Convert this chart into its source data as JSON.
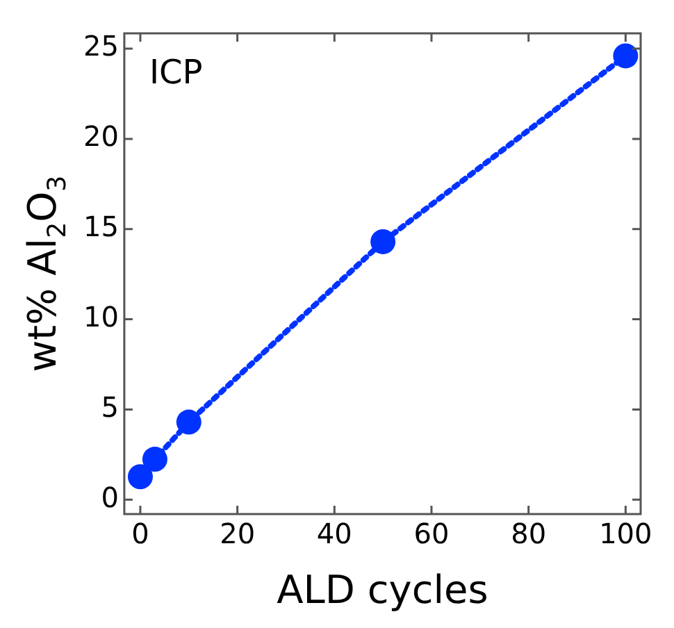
{
  "chart_data": {
    "type": "line",
    "xlabel": "ALD cycles",
    "ylabel": "wt% Al$_{2}$O$_{3}$",
    "annotations": [
      "ICP"
    ],
    "x": [
      0,
      3,
      10,
      50,
      100
    ],
    "series": [
      {
        "color": "#0033ff",
        "values": [
          1.27,
          2.24,
          4.3,
          14.3,
          24.6
        ]
      }
    ],
    "xlim": [
      -3.3,
      103.1
    ],
    "ylim": [
      -0.8,
      25.85
    ],
    "xticks": [
      0,
      20,
      40,
      60,
      80,
      100
    ],
    "yticks": [
      0,
      5,
      10,
      15,
      20,
      25
    ],
    "grid": false,
    "legend": false,
    "marker": "circle",
    "line_style": "dotted"
  }
}
